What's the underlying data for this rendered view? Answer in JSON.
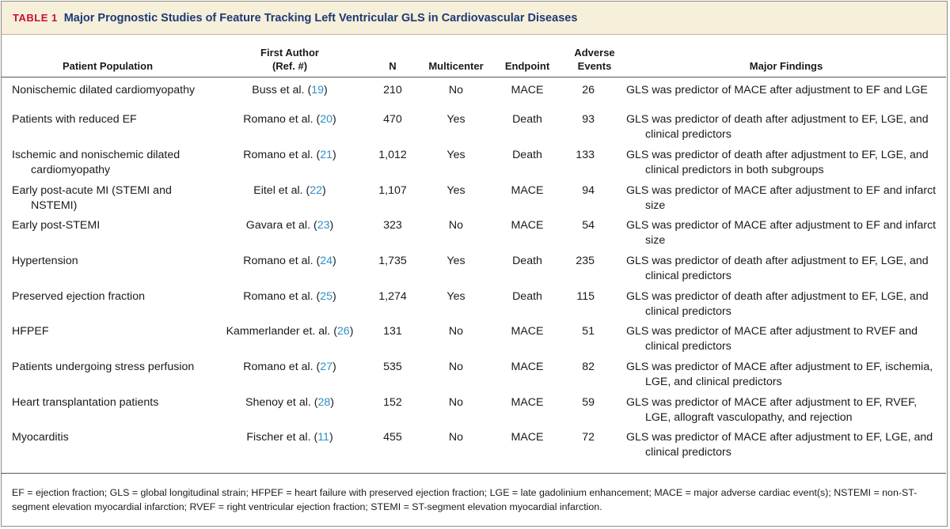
{
  "title": {
    "label": "TABLE 1",
    "text": "Major Prognostic Studies of Feature Tracking Left Ventricular GLS in Cardiovascular Diseases"
  },
  "headers": {
    "population": "Patient Population",
    "author_line1": "First Author",
    "author_line2": "(Ref. #)",
    "n": "N",
    "multicenter": "Multicenter",
    "endpoint": "Endpoint",
    "events_line1": "Adverse",
    "events_line2": "Events",
    "findings": "Major Findings"
  },
  "rows": [
    {
      "population": "Nonischemic dilated cardiomyopathy",
      "author": "Buss et al.",
      "ref": "19",
      "n": "210",
      "multicenter": "No",
      "endpoint": "MACE",
      "events": "26",
      "findings": "GLS was predictor of MACE after adjustment to EF and LGE"
    },
    {
      "population": "Patients with reduced EF",
      "author": "Romano et al.",
      "ref": "20",
      "n": "470",
      "multicenter": "Yes",
      "endpoint": "Death",
      "events": "93",
      "findings": "GLS was predictor of death after adjustment to EF, LGE, and clinical predictors"
    },
    {
      "population": "Ischemic and nonischemic dilated cardiomyopathy",
      "author": "Romano et al.",
      "ref": "21",
      "n": "1,012",
      "multicenter": "Yes",
      "endpoint": "Death",
      "events": "133",
      "findings": "GLS was predictor of death after adjustment to EF, LGE, and clinical predictors in both subgroups"
    },
    {
      "population": "Early post-acute MI (STEMI and NSTEMI)",
      "author": "Eitel et al.",
      "ref": "22",
      "n": "1,107",
      "multicenter": "Yes",
      "endpoint": "MACE",
      "events": "94",
      "findings": "GLS was predictor of MACE after adjustment to EF and infarct size"
    },
    {
      "population": "Early post-STEMI",
      "author": "Gavara et al.",
      "ref": "23",
      "n": "323",
      "multicenter": "No",
      "endpoint": "MACE",
      "events": "54",
      "findings": "GLS was predictor of MACE after adjustment to EF and infarct size"
    },
    {
      "population": "Hypertension",
      "author": "Romano et al.",
      "ref": "24",
      "n": "1,735",
      "multicenter": "Yes",
      "endpoint": "Death",
      "events": "235",
      "findings": "GLS was predictor of death after adjustment to EF, LGE, and clinical predictors"
    },
    {
      "population": "Preserved ejection fraction",
      "author": "Romano et al.",
      "ref": "25",
      "n": "1,274",
      "multicenter": "Yes",
      "endpoint": "Death",
      "events": "115",
      "findings": "GLS was predictor of death after adjustment to EF, LGE, and clinical predictors"
    },
    {
      "population": "HFPEF",
      "author": "Kammerlander et. al.",
      "ref": "26",
      "n": "131",
      "multicenter": "No",
      "endpoint": "MACE",
      "events": "51",
      "findings": "GLS was predictor of MACE after adjustment to RVEF and clinical predictors"
    },
    {
      "population": "Patients undergoing stress perfusion",
      "author": "Romano et al.",
      "ref": "27",
      "n": "535",
      "multicenter": "No",
      "endpoint": "MACE",
      "events": "82",
      "findings": "GLS was predictor of MACE after adjustment to EF, ischemia, LGE, and clinical predictors"
    },
    {
      "population": "Heart transplantation patients",
      "author": "Shenoy et al.",
      "ref": "28",
      "n": "152",
      "multicenter": "No",
      "endpoint": "MACE",
      "events": "59",
      "findings": "GLS was predictor of MACE after adjustment to EF, RVEF, LGE, allograft vasculopathy, and rejection"
    },
    {
      "population": "Myocarditis",
      "author": "Fischer et al.",
      "ref": "11",
      "n": "455",
      "multicenter": "No",
      "endpoint": "MACE",
      "events": "72",
      "findings": "GLS was predictor of MACE after adjustment to EF, LGE, and clinical predictors"
    }
  ],
  "footnote": "EF = ejection fraction; GLS = global longitudinal strain; HFPEF = heart failure with preserved ejection fraction; LGE = late gadolinium enhancement; MACE = major adverse cardiac event(s); NSTEMI = non-ST-segment elevation myocardial infarction; RVEF = right ventricular ejection fraction; STEMI = ST-segment elevation myocardial infarction.",
  "colors": {
    "title_bar_bg": "#f6efd9",
    "table_label": "#c8102e",
    "title_text": "#1c3a78",
    "reference_link": "#2b8fc7"
  }
}
